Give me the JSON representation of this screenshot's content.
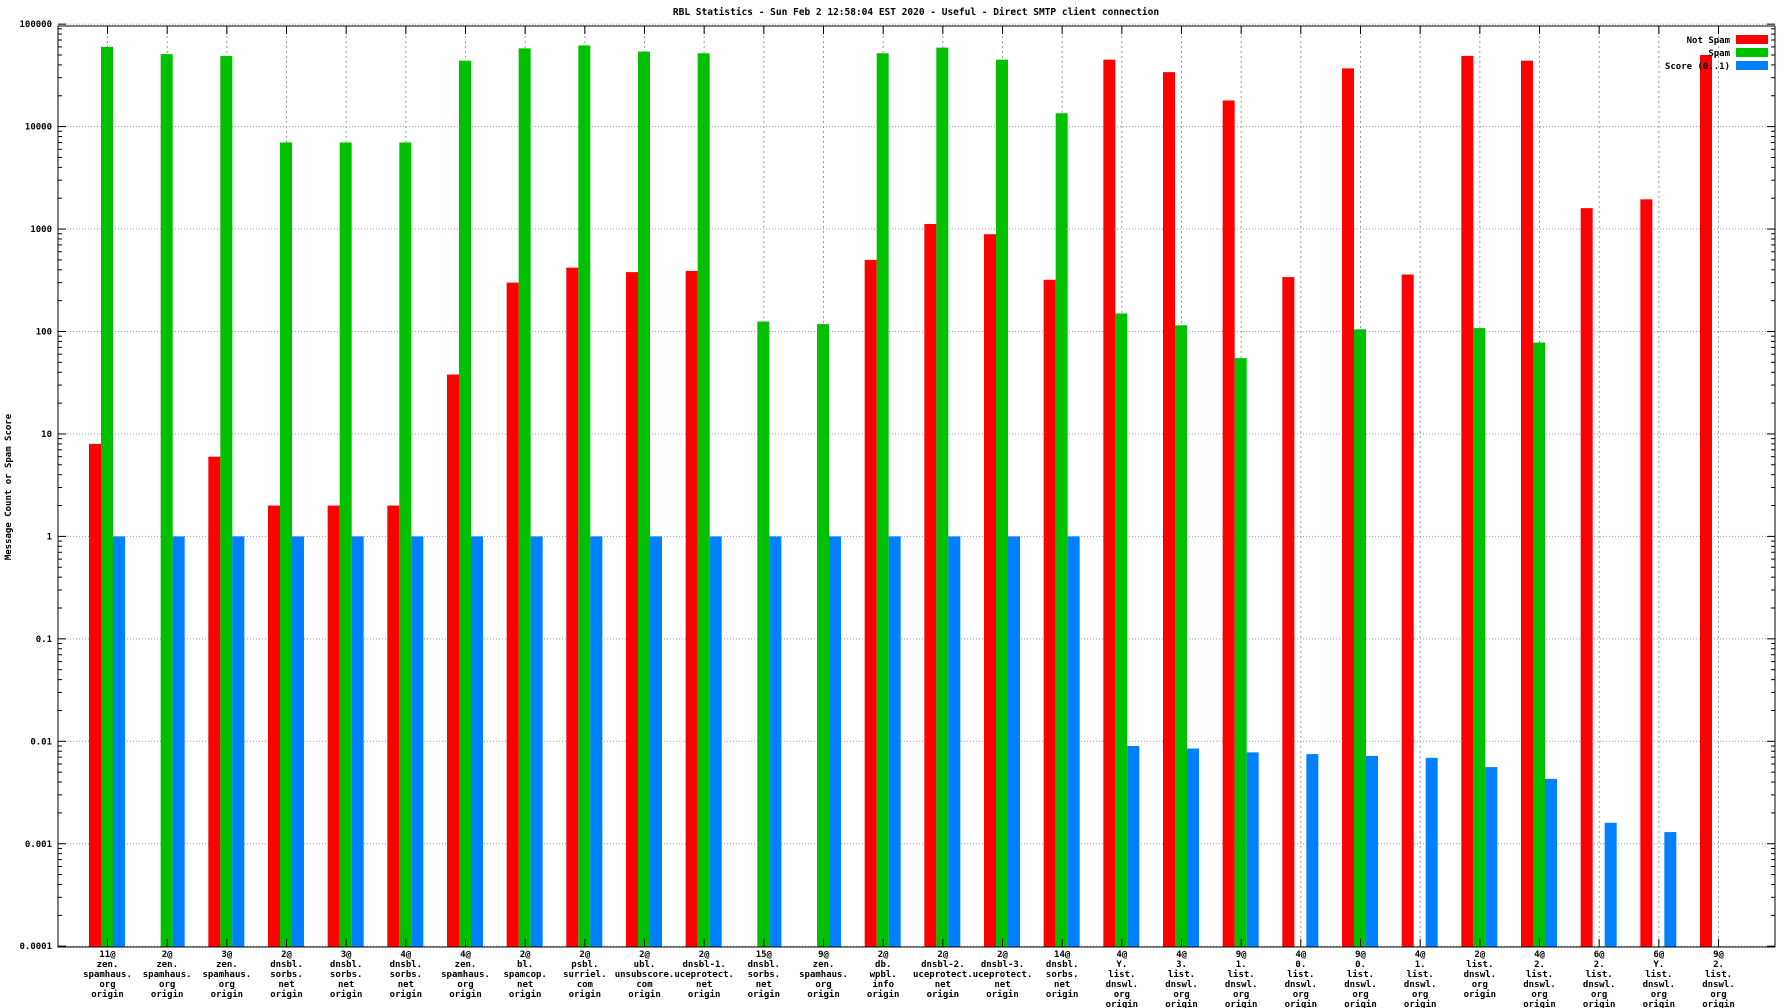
{
  "chart_data": {
    "type": "bar",
    "title": "RBL Statistics - Sun Feb  2 12:58:04 EST 2020 - Useful - Direct SMTP client connection",
    "ylabel": "Message Count or Spam Score",
    "scale": "log",
    "ylim": [
      0.0001,
      100000
    ],
    "grid": true,
    "legend_position": "top-right",
    "y_ticks": [
      {
        "label": "100000",
        "value": 100000
      },
      {
        "label": "10000",
        "value": 10000
      },
      {
        "label": "1000",
        "value": 1000
      },
      {
        "label": "100",
        "value": 100
      },
      {
        "label": "10",
        "value": 10
      },
      {
        "label": "1",
        "value": 1
      },
      {
        "label": "0.1",
        "value": 0.1
      },
      {
        "label": "0.01",
        "value": 0.01
      },
      {
        "label": "0.001",
        "value": 0.001
      },
      {
        "label": "0.0001",
        "value": 0.0001
      }
    ],
    "categories": [
      [
        "11@",
        "zen.",
        "spamhaus.",
        "org",
        "origin"
      ],
      [
        "2@",
        "zen.",
        "spamhaus.",
        "org",
        "origin"
      ],
      [
        "3@",
        "zen.",
        "spamhaus.",
        "org",
        "origin"
      ],
      [
        "2@",
        "dnsbl.",
        "sorbs.",
        "net",
        "origin"
      ],
      [
        "3@",
        "dnsbl.",
        "sorbs.",
        "net",
        "origin"
      ],
      [
        "4@",
        "dnsbl.",
        "sorbs.",
        "net",
        "origin"
      ],
      [
        "4@",
        "zen.",
        "spamhaus.",
        "org",
        "origin"
      ],
      [
        "2@",
        "bl.",
        "spamcop.",
        "net",
        "origin"
      ],
      [
        "2@",
        "psbl.",
        "surriel.",
        "com",
        "origin"
      ],
      [
        "2@",
        "ubl.",
        "unsubscore.",
        "com",
        "origin"
      ],
      [
        "2@",
        "dnsbl-1.",
        "uceprotect.",
        "net",
        "origin"
      ],
      [
        "15@",
        "dnsbl.",
        "sorbs.",
        "net",
        "origin"
      ],
      [
        "9@",
        "zen.",
        "spamhaus.",
        "org",
        "origin"
      ],
      [
        "2@",
        "db.",
        "wpbl.",
        "info",
        "origin"
      ],
      [
        "2@",
        "dnsbl-2.",
        "uceprotect.",
        "net",
        "origin"
      ],
      [
        "2@",
        "dnsbl-3.",
        "uceprotect.",
        "net",
        "origin"
      ],
      [
        "14@",
        "dnsbl.",
        "sorbs.",
        "net",
        "origin"
      ],
      [
        "4@",
        "Y.",
        "list.",
        "dnswl.",
        "org",
        "origin"
      ],
      [
        "4@",
        "3.",
        "list.",
        "dnswl.",
        "org",
        "origin"
      ],
      [
        "9@",
        "1.",
        "list.",
        "dnswl.",
        "org",
        "origin"
      ],
      [
        "4@",
        "0.",
        "list.",
        "dnswl.",
        "org",
        "origin"
      ],
      [
        "9@",
        "0.",
        "list.",
        "dnswl.",
        "org",
        "origin"
      ],
      [
        "4@",
        "1.",
        "list.",
        "dnswl.",
        "org",
        "origin"
      ],
      [
        "2@",
        "list.",
        "dnswl.",
        "org",
        "origin"
      ],
      [
        "4@",
        "2.",
        "list.",
        "dnswl.",
        "org",
        "origin"
      ],
      [
        "6@",
        "2.",
        "list.",
        "dnswl.",
        "org",
        "origin"
      ],
      [
        "6@",
        "Y.",
        "list.",
        "dnswl.",
        "org",
        "origin"
      ],
      [
        "9@",
        "2.",
        "list.",
        "dnswl.",
        "org",
        "origin"
      ]
    ],
    "series": [
      {
        "name": "Not Spam",
        "color": "#ff0000",
        "values": [
          8,
          null,
          6,
          2,
          2,
          2,
          38,
          300,
          420,
          380,
          390,
          null,
          null,
          500,
          1120,
          890,
          320,
          45000,
          34000,
          18000,
          340,
          37000,
          360,
          49000,
          44000,
          1600,
          1950,
          50000
        ]
      },
      {
        "name": "Spam",
        "color": "#00c000",
        "values": [
          60000,
          51000,
          49000,
          7000,
          7000,
          7000,
          44000,
          58000,
          62000,
          54000,
          52000,
          125,
          118,
          52000,
          59000,
          45000,
          13500,
          150,
          115,
          55,
          null,
          105,
          null,
          108,
          78,
          null,
          null,
          null
        ]
      },
      {
        "name": "Score (0..1)",
        "color": "#0080ff",
        "values": [
          1,
          1,
          1,
          1,
          1,
          1,
          1,
          1,
          1,
          1,
          1,
          1,
          1,
          1,
          1,
          1,
          1,
          0.009,
          0.0085,
          0.0078,
          0.0075,
          0.0072,
          0.0069,
          0.0056,
          0.0043,
          0.0016,
          0.0013,
          null
        ]
      }
    ]
  }
}
